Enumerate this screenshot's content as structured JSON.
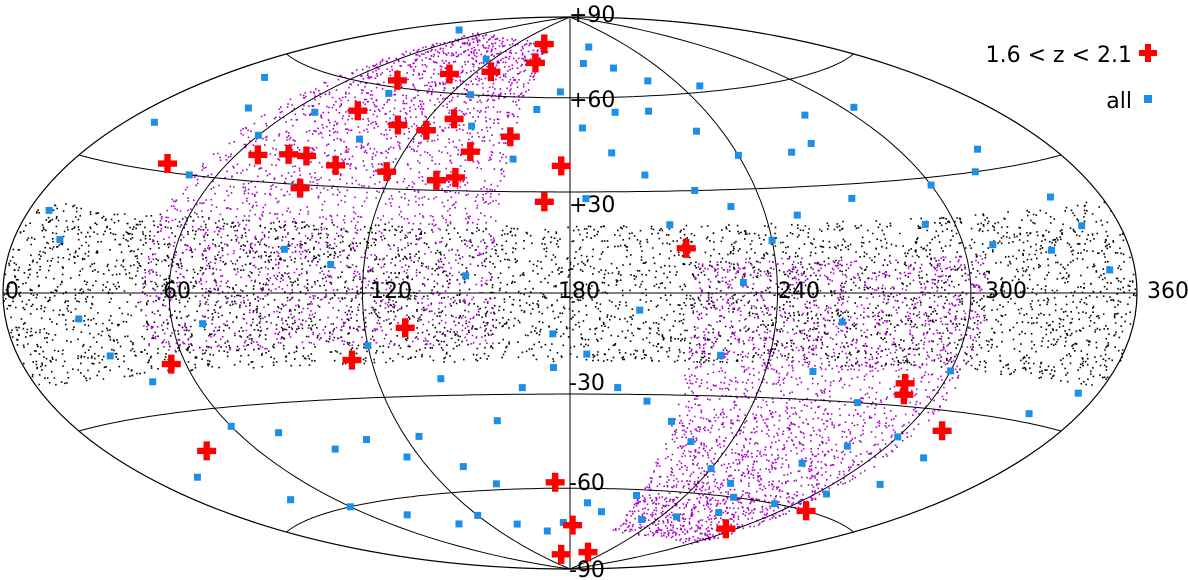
{
  "chart_data": {
    "type": "scatter",
    "projection": "hammer-aitoff",
    "title": "",
    "xlabel": "",
    "ylabel": "",
    "xlim": [
      0,
      360
    ],
    "ylim": [
      -90,
      90
    ],
    "grid": true,
    "legend_position": "top-right",
    "x_ticks": [
      "0",
      "60",
      "120",
      "180",
      "240",
      "300",
      "360"
    ],
    "y_ticks": [
      "+90",
      "+60",
      "+30",
      "-30",
      "-60",
      "-90"
    ],
    "legend": [
      {
        "label": "1.6 < z < 2.1",
        "marker": "plus",
        "color": "#ff0000"
      },
      {
        "label": "all",
        "marker": "square",
        "color": "#1e8fe6"
      }
    ],
    "background_fields": [
      {
        "color": "#000000",
        "marker": "dot",
        "ra_range": [
          0,
          360
        ],
        "dec_range": [
          -20,
          20
        ]
      },
      {
        "color": "#aa00cc",
        "marker": "dot",
        "ra_range": [
          50,
          158
        ],
        "dec_range": [
          -15,
          80
        ]
      },
      {
        "color": "#aa00cc",
        "marker": "dot",
        "ra_range": [
          215,
          305
        ],
        "dec_range": [
          -75,
          10
        ]
      }
    ],
    "series": [
      {
        "name": "1.6 < z < 2.1",
        "color": "#ff0000",
        "marker": "plus",
        "points": [
          [
            129,
            68
          ],
          [
            150,
            79
          ],
          [
            131,
            52
          ],
          [
            154,
            72
          ],
          [
            157,
            47
          ],
          [
            144,
            42
          ],
          [
            106,
            66
          ],
          [
            110,
            49
          ],
          [
            123,
            48
          ],
          [
            87,
            52
          ],
          [
            84,
            62
          ],
          [
            79,
            38
          ],
          [
            86,
            38
          ],
          [
            99,
            36
          ],
          [
            92,
            29
          ],
          [
            118,
            35
          ],
          [
            142,
            34
          ],
          [
            68,
            37
          ],
          [
            177,
            38
          ],
          [
            172,
            27
          ],
          [
            38,
            32
          ],
          [
            136,
            33
          ],
          [
            214,
            13
          ],
          [
            132,
            -10
          ],
          [
            114,
            -19
          ],
          [
            55,
            -18
          ],
          [
            40,
            -40
          ],
          [
            173,
            -58
          ],
          [
            289,
            -27
          ],
          [
            287,
            -24
          ],
          [
            314,
            -35
          ],
          [
            294,
            -69
          ],
          [
            312,
            -60
          ],
          [
            212,
            -83
          ],
          [
            162,
            -84
          ],
          [
            182,
            -73
          ]
        ]
      },
      {
        "name": "all",
        "color": "#1e8fe6",
        "marker": "square",
        "points": [
          [
            115,
            72
          ],
          [
            30,
            78
          ],
          [
            200,
            78
          ],
          [
            210,
            70
          ],
          [
            215,
            55
          ],
          [
            200,
            55
          ],
          [
            230,
            48
          ],
          [
            240,
            40
          ],
          [
            260,
            40
          ],
          [
            270,
            42
          ],
          [
            280,
            50
          ],
          [
            300,
            28
          ],
          [
            320,
            30
          ],
          [
            340,
            22
          ],
          [
            20,
            55
          ],
          [
            40,
            48
          ],
          [
            60,
            42
          ],
          [
            70,
            50
          ],
          [
            90,
            58
          ],
          [
            100,
            44
          ],
          [
            130,
            60
          ],
          [
            140,
            50
          ],
          [
            165,
            56
          ],
          [
            175,
            62
          ],
          [
            185,
            50
          ],
          [
            195,
            42
          ],
          [
            205,
            35
          ],
          [
            220,
            30
          ],
          [
            230,
            25
          ],
          [
            250,
            22
          ],
          [
            270,
            26
          ],
          [
            290,
            18
          ],
          [
            310,
            12
          ],
          [
            330,
            10
          ],
          [
            350,
            5
          ],
          [
            8,
            18
          ],
          [
            18,
            12
          ],
          [
            28,
            -6
          ],
          [
            35,
            -15
          ],
          [
            45,
            -22
          ],
          [
            60,
            -35
          ],
          [
            75,
            -38
          ],
          [
            90,
            -44
          ],
          [
            105,
            -42
          ],
          [
            115,
            -48
          ],
          [
            125,
            -42
          ],
          [
            135,
            -52
          ],
          [
            145,
            -58
          ],
          [
            155,
            -38
          ],
          [
            165,
            -28
          ],
          [
            175,
            -22
          ],
          [
            185,
            -18
          ],
          [
            195,
            -28
          ],
          [
            205,
            -32
          ],
          [
            215,
            -38
          ],
          [
            225,
            -44
          ],
          [
            240,
            -52
          ],
          [
            255,
            -56
          ],
          [
            265,
            -60
          ],
          [
            275,
            -48
          ],
          [
            285,
            -42
          ],
          [
            300,
            -38
          ],
          [
            320,
            -42
          ],
          [
            340,
            -28
          ],
          [
            352,
            -22
          ],
          [
            20,
            -45
          ],
          [
            40,
            -55
          ],
          [
            60,
            -60
          ],
          [
            80,
            -65
          ],
          [
            100,
            -70
          ],
          [
            120,
            -68
          ],
          [
            140,
            -72
          ],
          [
            160,
            -75
          ],
          [
            175,
            -72
          ],
          [
            190,
            -65
          ],
          [
            200,
            -68
          ],
          [
            215,
            -62
          ],
          [
            230,
            -70
          ],
          [
            250,
            -68
          ],
          [
            270,
            -65
          ],
          [
            290,
            -60
          ],
          [
            305,
            -55
          ],
          [
            320,
            -50
          ],
          [
            110,
            8
          ],
          [
            150,
            5
          ],
          [
            200,
            -5
          ],
          [
            230,
            3
          ],
          [
            260,
            -8
          ],
          [
            70,
            -8
          ],
          [
            95,
            12
          ],
          [
            175,
            -12
          ],
          [
            120,
            -15
          ],
          [
            140,
            -25
          ],
          [
            225,
            -18
          ],
          [
            255,
            -22
          ],
          [
            275,
            -30
          ],
          [
            300,
            -20
          ],
          [
            210,
            20
          ],
          [
            185,
            28
          ],
          [
            240,
            15
          ],
          [
            160,
            40
          ],
          [
            50,
            30
          ],
          [
            12,
            40
          ],
          [
            345,
            15
          ],
          [
            330,
            35
          ],
          [
            305,
            50
          ],
          [
            250,
            62
          ],
          [
            225,
            65
          ],
          [
            190,
            72
          ]
        ]
      }
    ]
  }
}
